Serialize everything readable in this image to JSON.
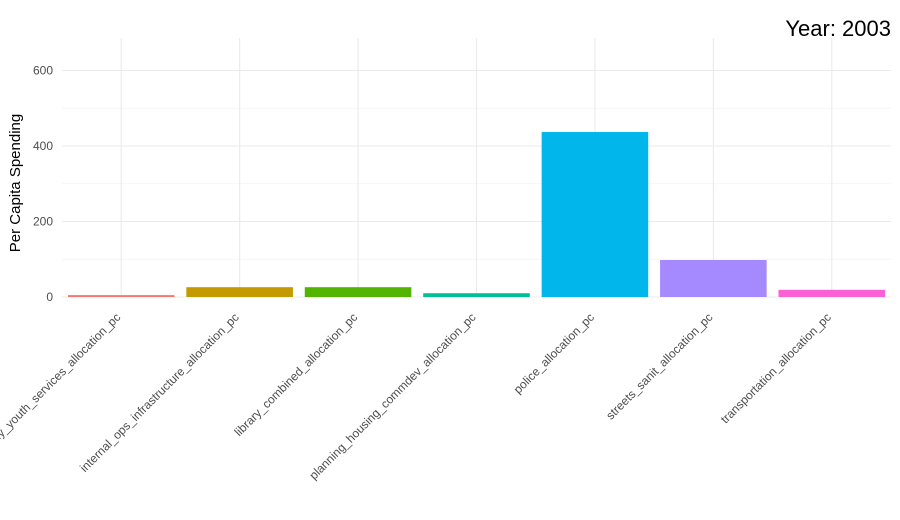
{
  "chart_data": {
    "type": "bar",
    "title": "Year: 2003",
    "xlabel": "",
    "ylabel": "Per Capita Spending",
    "ylim": [
      0,
      680
    ],
    "yticks": [
      0,
      200,
      400,
      600
    ],
    "grid": true,
    "legend": "none",
    "categories": [
      "family_youth_services_allocation_pc",
      "internal_ops_infrastructure_allocation_pc",
      "library_combined_allocation_pc",
      "planning_housing_commdev_allocation_pc",
      "police_allocation_pc",
      "streets_sanit_allocation_pc",
      "transportation_allocation_pc"
    ],
    "values": [
      5,
      26,
      26,
      10,
      437,
      98,
      19
    ],
    "colors": [
      "#F8766D",
      "#C49A00",
      "#53B400",
      "#00C094",
      "#00B6EB",
      "#A58AFF",
      "#FB61D7"
    ]
  }
}
